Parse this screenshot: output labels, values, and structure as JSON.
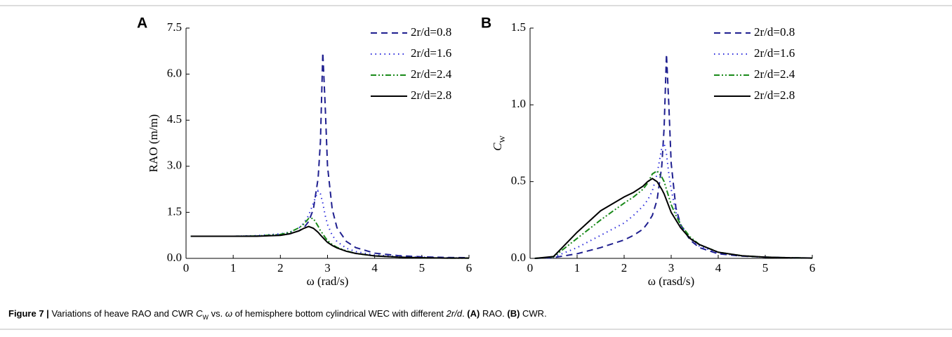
{
  "chart_data": [
    {
      "type": "line",
      "panel": "A",
      "ylabel": "RAO (m/m)",
      "xlabel": "ω (rad/s)",
      "xlim": [
        0,
        6
      ],
      "xticks": [
        0,
        1,
        2,
        3,
        4,
        5,
        6
      ],
      "ylim": [
        0,
        7.5
      ],
      "yticks": [
        {
          "value": 0,
          "label": "0.0"
        },
        {
          "value": 1.5,
          "label": "1.5"
        },
        {
          "value": 3,
          "label": "3.0"
        },
        {
          "value": 4.5,
          "label": "4.5"
        },
        {
          "value": 6,
          "label": "6.0"
        },
        {
          "value": 7.5,
          "label": "7.5"
        }
      ],
      "x": [
        0.1,
        0.5,
        1,
        1.5,
        2,
        2.2,
        2.4,
        2.5,
        2.6,
        2.7,
        2.8,
        2.85,
        2.9,
        2.95,
        3.0,
        3.1,
        3.2,
        3.4,
        3.6,
        4,
        4.5,
        5,
        5.5,
        6
      ],
      "series": [
        {
          "name": "2r/d=0.8",
          "color": "#1f1f8f",
          "dash": "9,6",
          "values": [
            0.72,
            0.72,
            0.72,
            0.73,
            0.76,
            0.8,
            0.9,
            1.0,
            1.2,
            1.6,
            2.6,
            3.8,
            6.7,
            5.0,
            3.0,
            1.6,
            1.0,
            0.55,
            0.35,
            0.17,
            0.09,
            0.05,
            0.03,
            0.02
          ]
        },
        {
          "name": "2r/d=1.6",
          "color": "#2b2bdc",
          "dash": "1.5,5",
          "values": [
            0.72,
            0.72,
            0.72,
            0.74,
            0.8,
            0.85,
            1.0,
            1.15,
            1.4,
            1.8,
            2.2,
            2.1,
            1.8,
            1.4,
            1.1,
            0.75,
            0.55,
            0.33,
            0.22,
            0.11,
            0.06,
            0.04,
            0.02,
            0.01
          ]
        },
        {
          "name": "2r/d=2.4",
          "color": "#1a8a1a",
          "dash": "8,3,2,3,2,3",
          "values": [
            0.72,
            0.72,
            0.72,
            0.73,
            0.78,
            0.85,
            1.0,
            1.12,
            1.3,
            1.3,
            1.05,
            0.9,
            0.8,
            0.68,
            0.58,
            0.45,
            0.36,
            0.24,
            0.16,
            0.08,
            0.04,
            0.02,
            0.01,
            0.01
          ]
        },
        {
          "name": "2r/d=2.8",
          "color": "#000000",
          "dash": "none",
          "values": [
            0.72,
            0.72,
            0.72,
            0.72,
            0.75,
            0.8,
            0.9,
            0.98,
            1.04,
            0.98,
            0.85,
            0.76,
            0.68,
            0.6,
            0.52,
            0.42,
            0.34,
            0.23,
            0.16,
            0.08,
            0.04,
            0.02,
            0.01,
            0.01
          ]
        }
      ]
    },
    {
      "type": "line",
      "panel": "B",
      "ylabel": "C",
      "ylabel_sub": "W",
      "xlabel": "ω (rasd/s)",
      "xlim": [
        0,
        6
      ],
      "xticks": [
        0,
        1,
        2,
        3,
        4,
        5,
        6
      ],
      "ylim": [
        0,
        1.5
      ],
      "yticks": [
        {
          "value": 0,
          "label": "0.0"
        },
        {
          "value": 0.5,
          "label": "0.5"
        },
        {
          "value": 1,
          "label": "1.0"
        },
        {
          "value": 1.5,
          "label": "1.5"
        }
      ],
      "x": [
        0.1,
        0.5,
        1,
        1.5,
        2,
        2.2,
        2.4,
        2.5,
        2.6,
        2.7,
        2.8,
        2.85,
        2.9,
        2.95,
        3.0,
        3.1,
        3.2,
        3.4,
        3.6,
        4,
        4.5,
        5,
        5.5,
        6
      ],
      "series": [
        {
          "name": "2r/d=0.8",
          "color": "#1f1f8f",
          "dash": "9,6",
          "values": [
            0,
            0.005,
            0.03,
            0.07,
            0.12,
            0.15,
            0.19,
            0.23,
            0.28,
            0.38,
            0.6,
            0.85,
            1.33,
            1.0,
            0.62,
            0.33,
            0.22,
            0.12,
            0.07,
            0.03,
            0.015,
            0.008,
            0.004,
            0.002
          ]
        },
        {
          "name": "2r/d=1.6",
          "color": "#2b2bdc",
          "dash": "1.5,5",
          "values": [
            0,
            0.008,
            0.07,
            0.15,
            0.23,
            0.28,
            0.34,
            0.38,
            0.44,
            0.55,
            0.72,
            0.75,
            0.68,
            0.55,
            0.45,
            0.3,
            0.22,
            0.13,
            0.08,
            0.035,
            0.015,
            0.008,
            0.004,
            0.002
          ]
        },
        {
          "name": "2r/d=2.4",
          "color": "#1a8a1a",
          "dash": "8,3,2,3,2,3",
          "values": [
            0,
            0.01,
            0.13,
            0.25,
            0.36,
            0.4,
            0.45,
            0.49,
            0.55,
            0.57,
            0.53,
            0.5,
            0.45,
            0.4,
            0.35,
            0.28,
            0.22,
            0.14,
            0.09,
            0.04,
            0.017,
            0.008,
            0.004,
            0.002
          ]
        },
        {
          "name": "2r/d=2.8",
          "color": "#000000",
          "dash": "none",
          "values": [
            0,
            0.012,
            0.17,
            0.31,
            0.4,
            0.43,
            0.47,
            0.5,
            0.52,
            0.5,
            0.45,
            0.42,
            0.38,
            0.34,
            0.3,
            0.25,
            0.2,
            0.13,
            0.09,
            0.04,
            0.017,
            0.008,
            0.004,
            0.002
          ]
        }
      ]
    }
  ],
  "caption": [
    {
      "text": "Figure 7 |",
      "style": "bold"
    },
    {
      "text": " Variations of heave RAO and CWR ",
      "style": "normal"
    },
    {
      "text": "C",
      "style": "italic"
    },
    {
      "text": "W",
      "style": "sub"
    },
    {
      "text": " vs. ",
      "style": "normal"
    },
    {
      "text": "ω",
      "style": "italic"
    },
    {
      "text": " of hemisphere bottom cylindrical WEC with different ",
      "style": "normal"
    },
    {
      "text": "2r/d",
      "style": "italic"
    },
    {
      "text": ". ",
      "style": "normal"
    },
    {
      "text": "(A)",
      "style": "bold"
    },
    {
      "text": " RAO. ",
      "style": "normal"
    },
    {
      "text": "(B)",
      "style": "bold"
    },
    {
      "text": " CWR.",
      "style": "normal"
    }
  ]
}
